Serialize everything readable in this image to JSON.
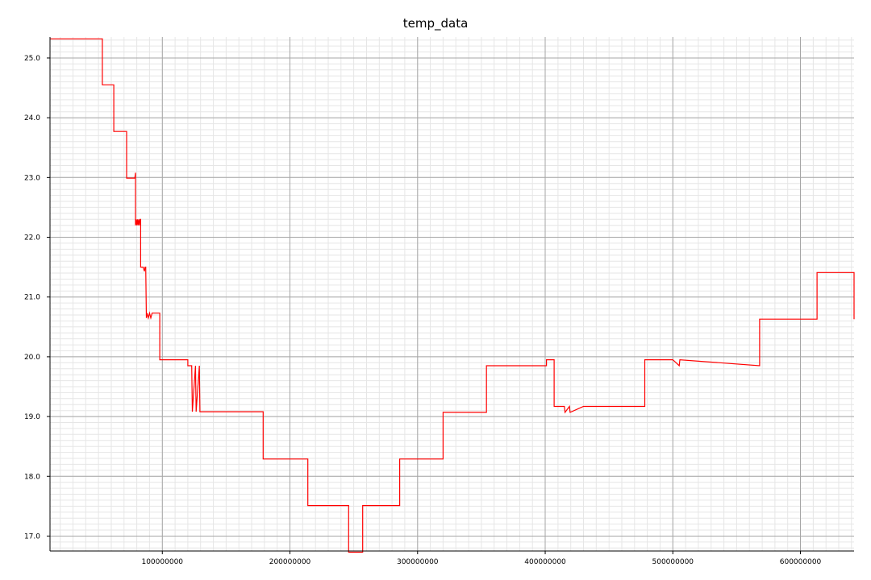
{
  "chart_data": {
    "type": "line",
    "title": "temp_data",
    "xlabel": "",
    "ylabel": "",
    "xlim": [
      12000000,
      642000000
    ],
    "ylim": [
      16.75,
      25.35
    ],
    "xticks": [
      100000000,
      200000000,
      300000000,
      400000000,
      500000000,
      600000000
    ],
    "xtick_labels": [
      "100000000",
      "200000000",
      "300000000",
      "400000000",
      "500000000",
      "600000000"
    ],
    "yticks": [
      17.0,
      18.0,
      19.0,
      20.0,
      21.0,
      22.0,
      23.0,
      24.0,
      25.0
    ],
    "ytick_labels": [
      "17.0",
      "18.0",
      "19.0",
      "20.0",
      "21.0",
      "22.0",
      "23.0",
      "24.0",
      "25.0"
    ],
    "grid": true,
    "line_style": "step",
    "series": [
      {
        "color": "#ff0000",
        "x": [
          12000000,
          53000000,
          53000000,
          62000000,
          62000000,
          72000000,
          72000000,
          78500000,
          79000000,
          79000000,
          79500000,
          80000000,
          80500000,
          81000000,
          81500000,
          82000000,
          82500000,
          83000000,
          83000000,
          84000000,
          85000000,
          86000000,
          86500000,
          87000000,
          87500000,
          88000000,
          89000000,
          90000000,
          91000000,
          92000000,
          93000000,
          98000000,
          98000000,
          120000000,
          120000000,
          123000000,
          123500000,
          126000000,
          126500000,
          129000000,
          129500000,
          130000000,
          179000000,
          179000000,
          214000000,
          214000000,
          246000000,
          246000000,
          257000000,
          257000000,
          286000000,
          286000000,
          320000000,
          320000000,
          354000000,
          354000000,
          401000000,
          401000000,
          402000000,
          407000000,
          407000000,
          415000000,
          415500000,
          419000000,
          419500000,
          430000000,
          478000000,
          478000000,
          500000000,
          505000000,
          505500000,
          568000000,
          568000000,
          568500000,
          613000000,
          613000000,
          642000000,
          642000000
        ],
        "y": [
          25.32,
          25.32,
          24.55,
          24.55,
          23.77,
          23.77,
          22.99,
          22.99,
          23.08,
          22.2,
          22.3,
          22.2,
          22.3,
          22.2,
          22.3,
          22.2,
          22.3,
          22.3,
          21.5,
          21.5,
          21.5,
          21.43,
          21.5,
          21.5,
          20.65,
          20.73,
          20.65,
          20.73,
          20.65,
          20.73,
          20.73,
          20.73,
          19.95,
          19.95,
          19.85,
          19.85,
          19.08,
          19.85,
          19.08,
          19.85,
          19.08,
          19.08,
          19.08,
          18.29,
          18.29,
          17.51,
          17.51,
          16.73,
          16.73,
          17.51,
          17.51,
          18.29,
          18.29,
          19.07,
          19.07,
          19.85,
          19.85,
          19.95,
          19.95,
          19.95,
          19.17,
          19.17,
          19.07,
          19.17,
          19.07,
          19.17,
          19.17,
          19.95,
          19.95,
          19.85,
          19.95,
          19.85,
          20.63,
          20.63,
          20.63,
          21.41,
          21.41,
          20.63
        ]
      }
    ]
  }
}
